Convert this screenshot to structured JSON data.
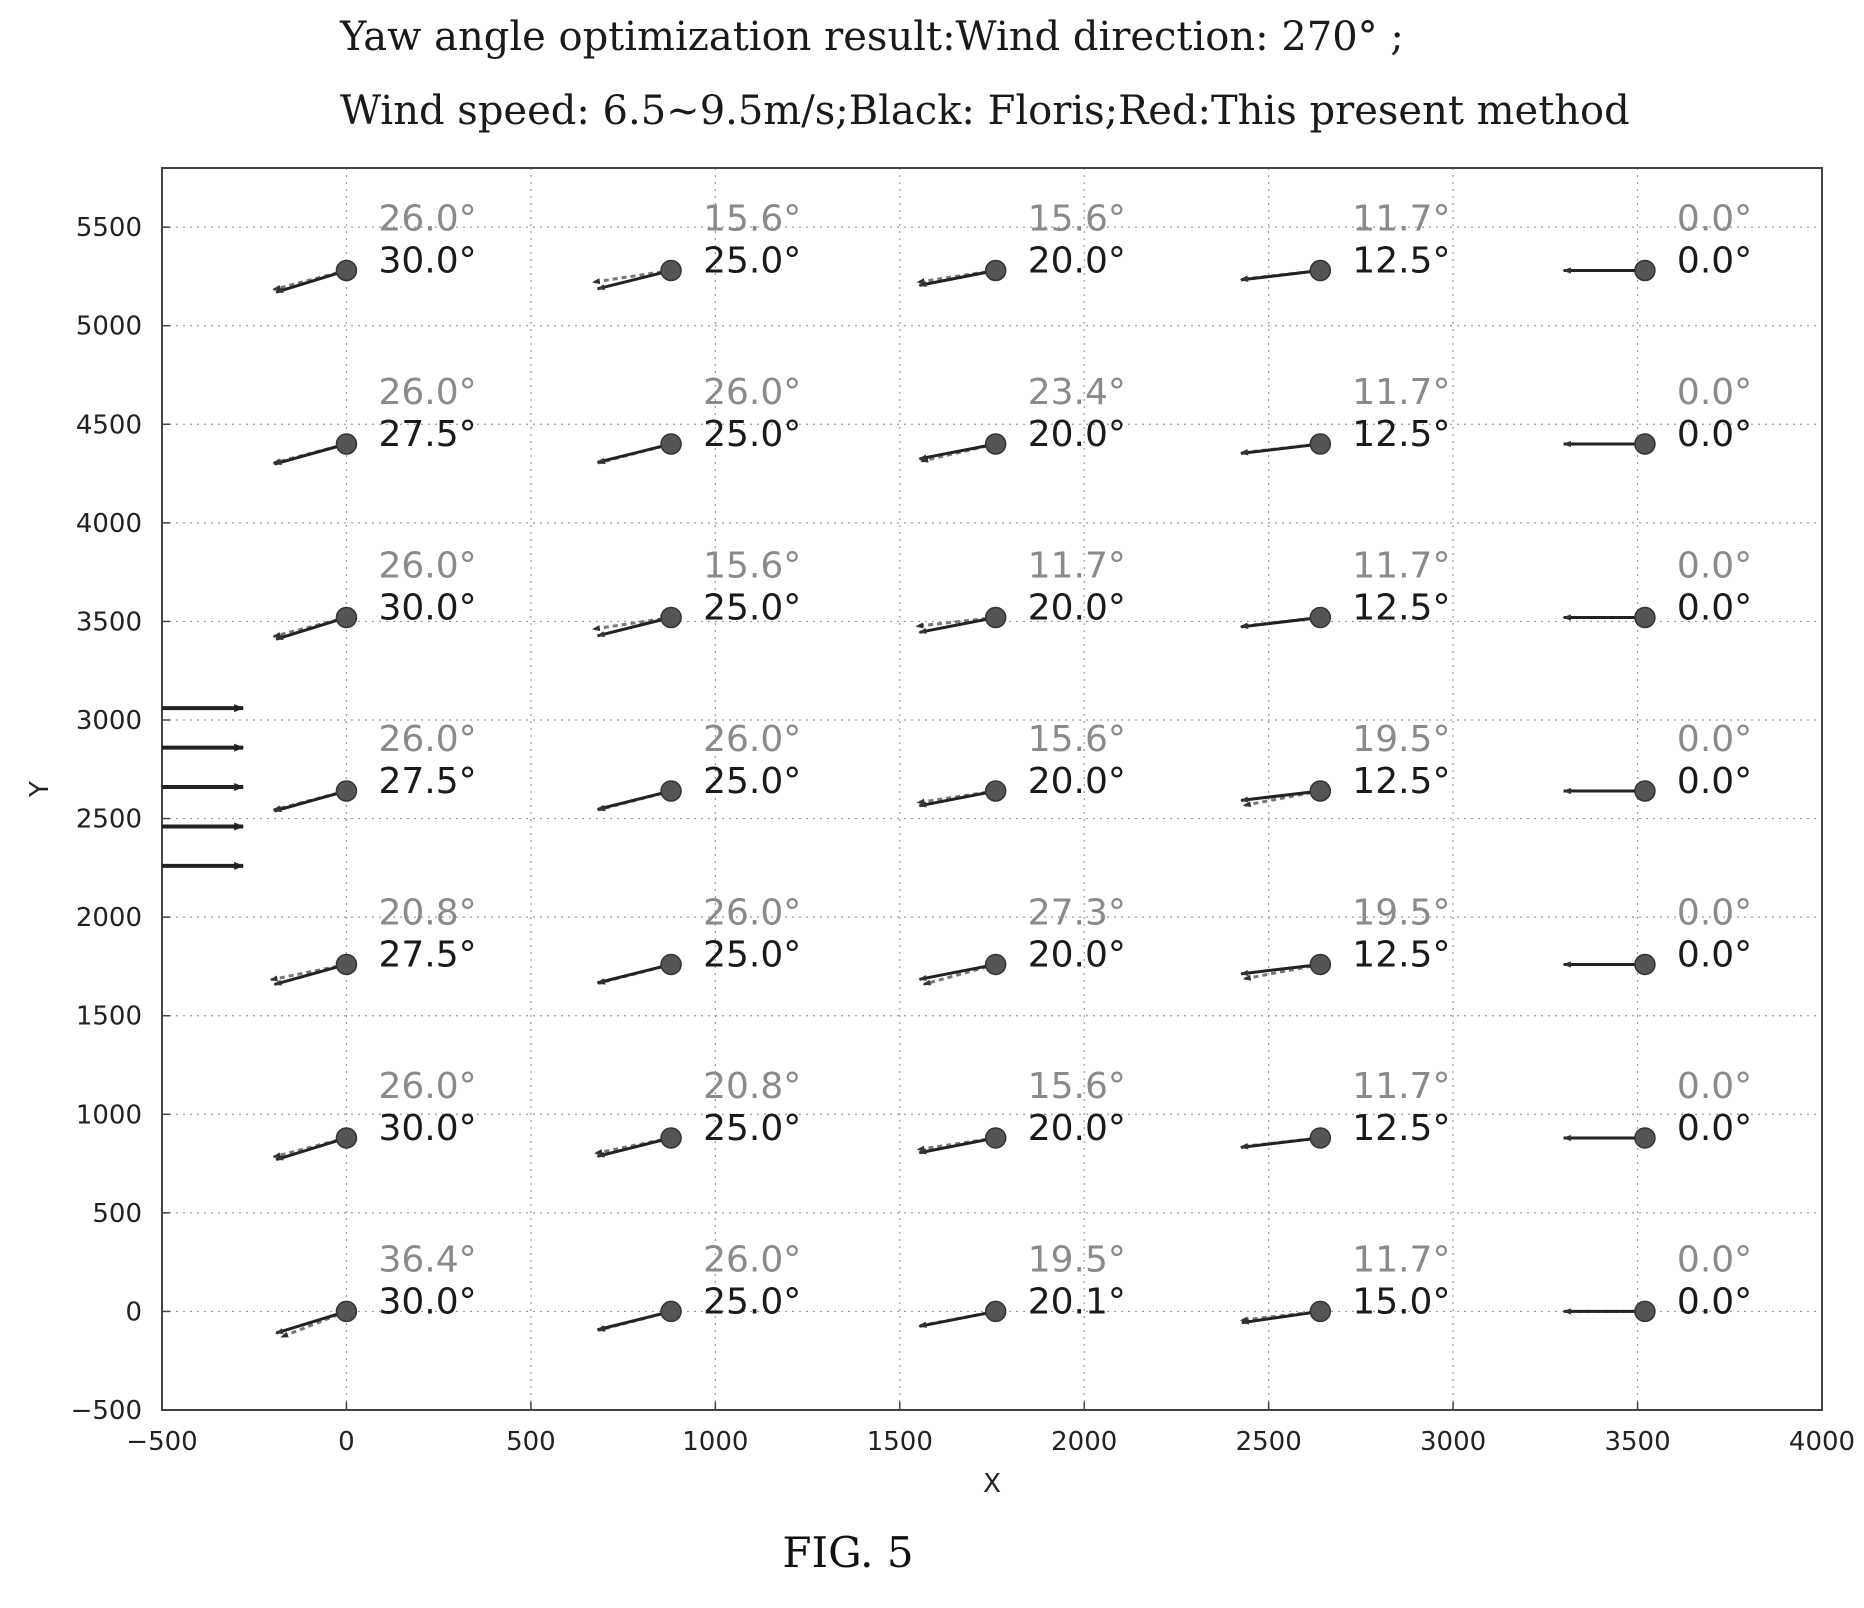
{
  "title": {
    "line1": "Yaw angle optimization result:Wind direction: 270°  ;",
    "line2": "Wind speed: 6.5~9.5m/s;Black: Floris;Red:This present method"
  },
  "figure_caption": "FIG. 5",
  "chart_data": {
    "type": "scatter",
    "xlabel": "X",
    "ylabel": "Y",
    "xlim": [
      -500,
      4000
    ],
    "ylim": [
      -500,
      5800
    ],
    "xticks": [
      -500,
      0,
      500,
      1000,
      1500,
      2000,
      2500,
      3000,
      3500,
      4000
    ],
    "yticks": [
      -500,
      0,
      500,
      1000,
      1500,
      2000,
      2500,
      3000,
      3500,
      4000,
      4500,
      5000,
      5500
    ],
    "grid": true,
    "columns_x": [
      0,
      880,
      1760,
      2640,
      3520
    ],
    "rows_y": [
      5280,
      4400,
      3520,
      2640,
      1760,
      880,
      0
    ],
    "series": [
      {
        "name": "Floris",
        "color": "#8a8a8a",
        "yaw_deg": [
          [
            "26.0°",
            "15.6°",
            "15.6°",
            "11.7°",
            "0.0°"
          ],
          [
            "26.0°",
            "26.0°",
            "23.4°",
            "11.7°",
            "0.0°"
          ],
          [
            "26.0°",
            "15.6°",
            "11.7°",
            "11.7°",
            "0.0°"
          ],
          [
            "26.0°",
            "26.0°",
            "15.6°",
            "19.5°",
            "0.0°"
          ],
          [
            "20.8°",
            "26.0°",
            "27.3°",
            "19.5°",
            "0.0°"
          ],
          [
            "26.0°",
            "20.8°",
            "15.6°",
            "11.7°",
            "0.0°"
          ],
          [
            "36.4°",
            "26.0°",
            "19.5°",
            "11.7°",
            "0.0°"
          ]
        ]
      },
      {
        "name": "This present method",
        "color": "#1a1a1a",
        "yaw_deg": [
          [
            "30.0°",
            "25.0°",
            "20.0°",
            "12.5°",
            "0.0°"
          ],
          [
            "27.5°",
            "25.0°",
            "20.0°",
            "12.5°",
            "0.0°"
          ],
          [
            "30.0°",
            "25.0°",
            "20.0°",
            "12.5°",
            "0.0°"
          ],
          [
            "27.5°",
            "25.0°",
            "20.0°",
            "12.5°",
            "0.0°"
          ],
          [
            "27.5°",
            "25.0°",
            "20.0°",
            "12.5°",
            "0.0°"
          ],
          [
            "30.0°",
            "25.0°",
            "20.0°",
            "12.5°",
            "0.0°"
          ],
          [
            "30.0°",
            "25.0°",
            "20.1°",
            "15.0°",
            "0.0°"
          ]
        ]
      }
    ],
    "wind_arrows_y": [
      3060,
      2860,
      2660,
      2460,
      2260
    ],
    "wind_arrow_x": [
      -500,
      -280
    ]
  }
}
